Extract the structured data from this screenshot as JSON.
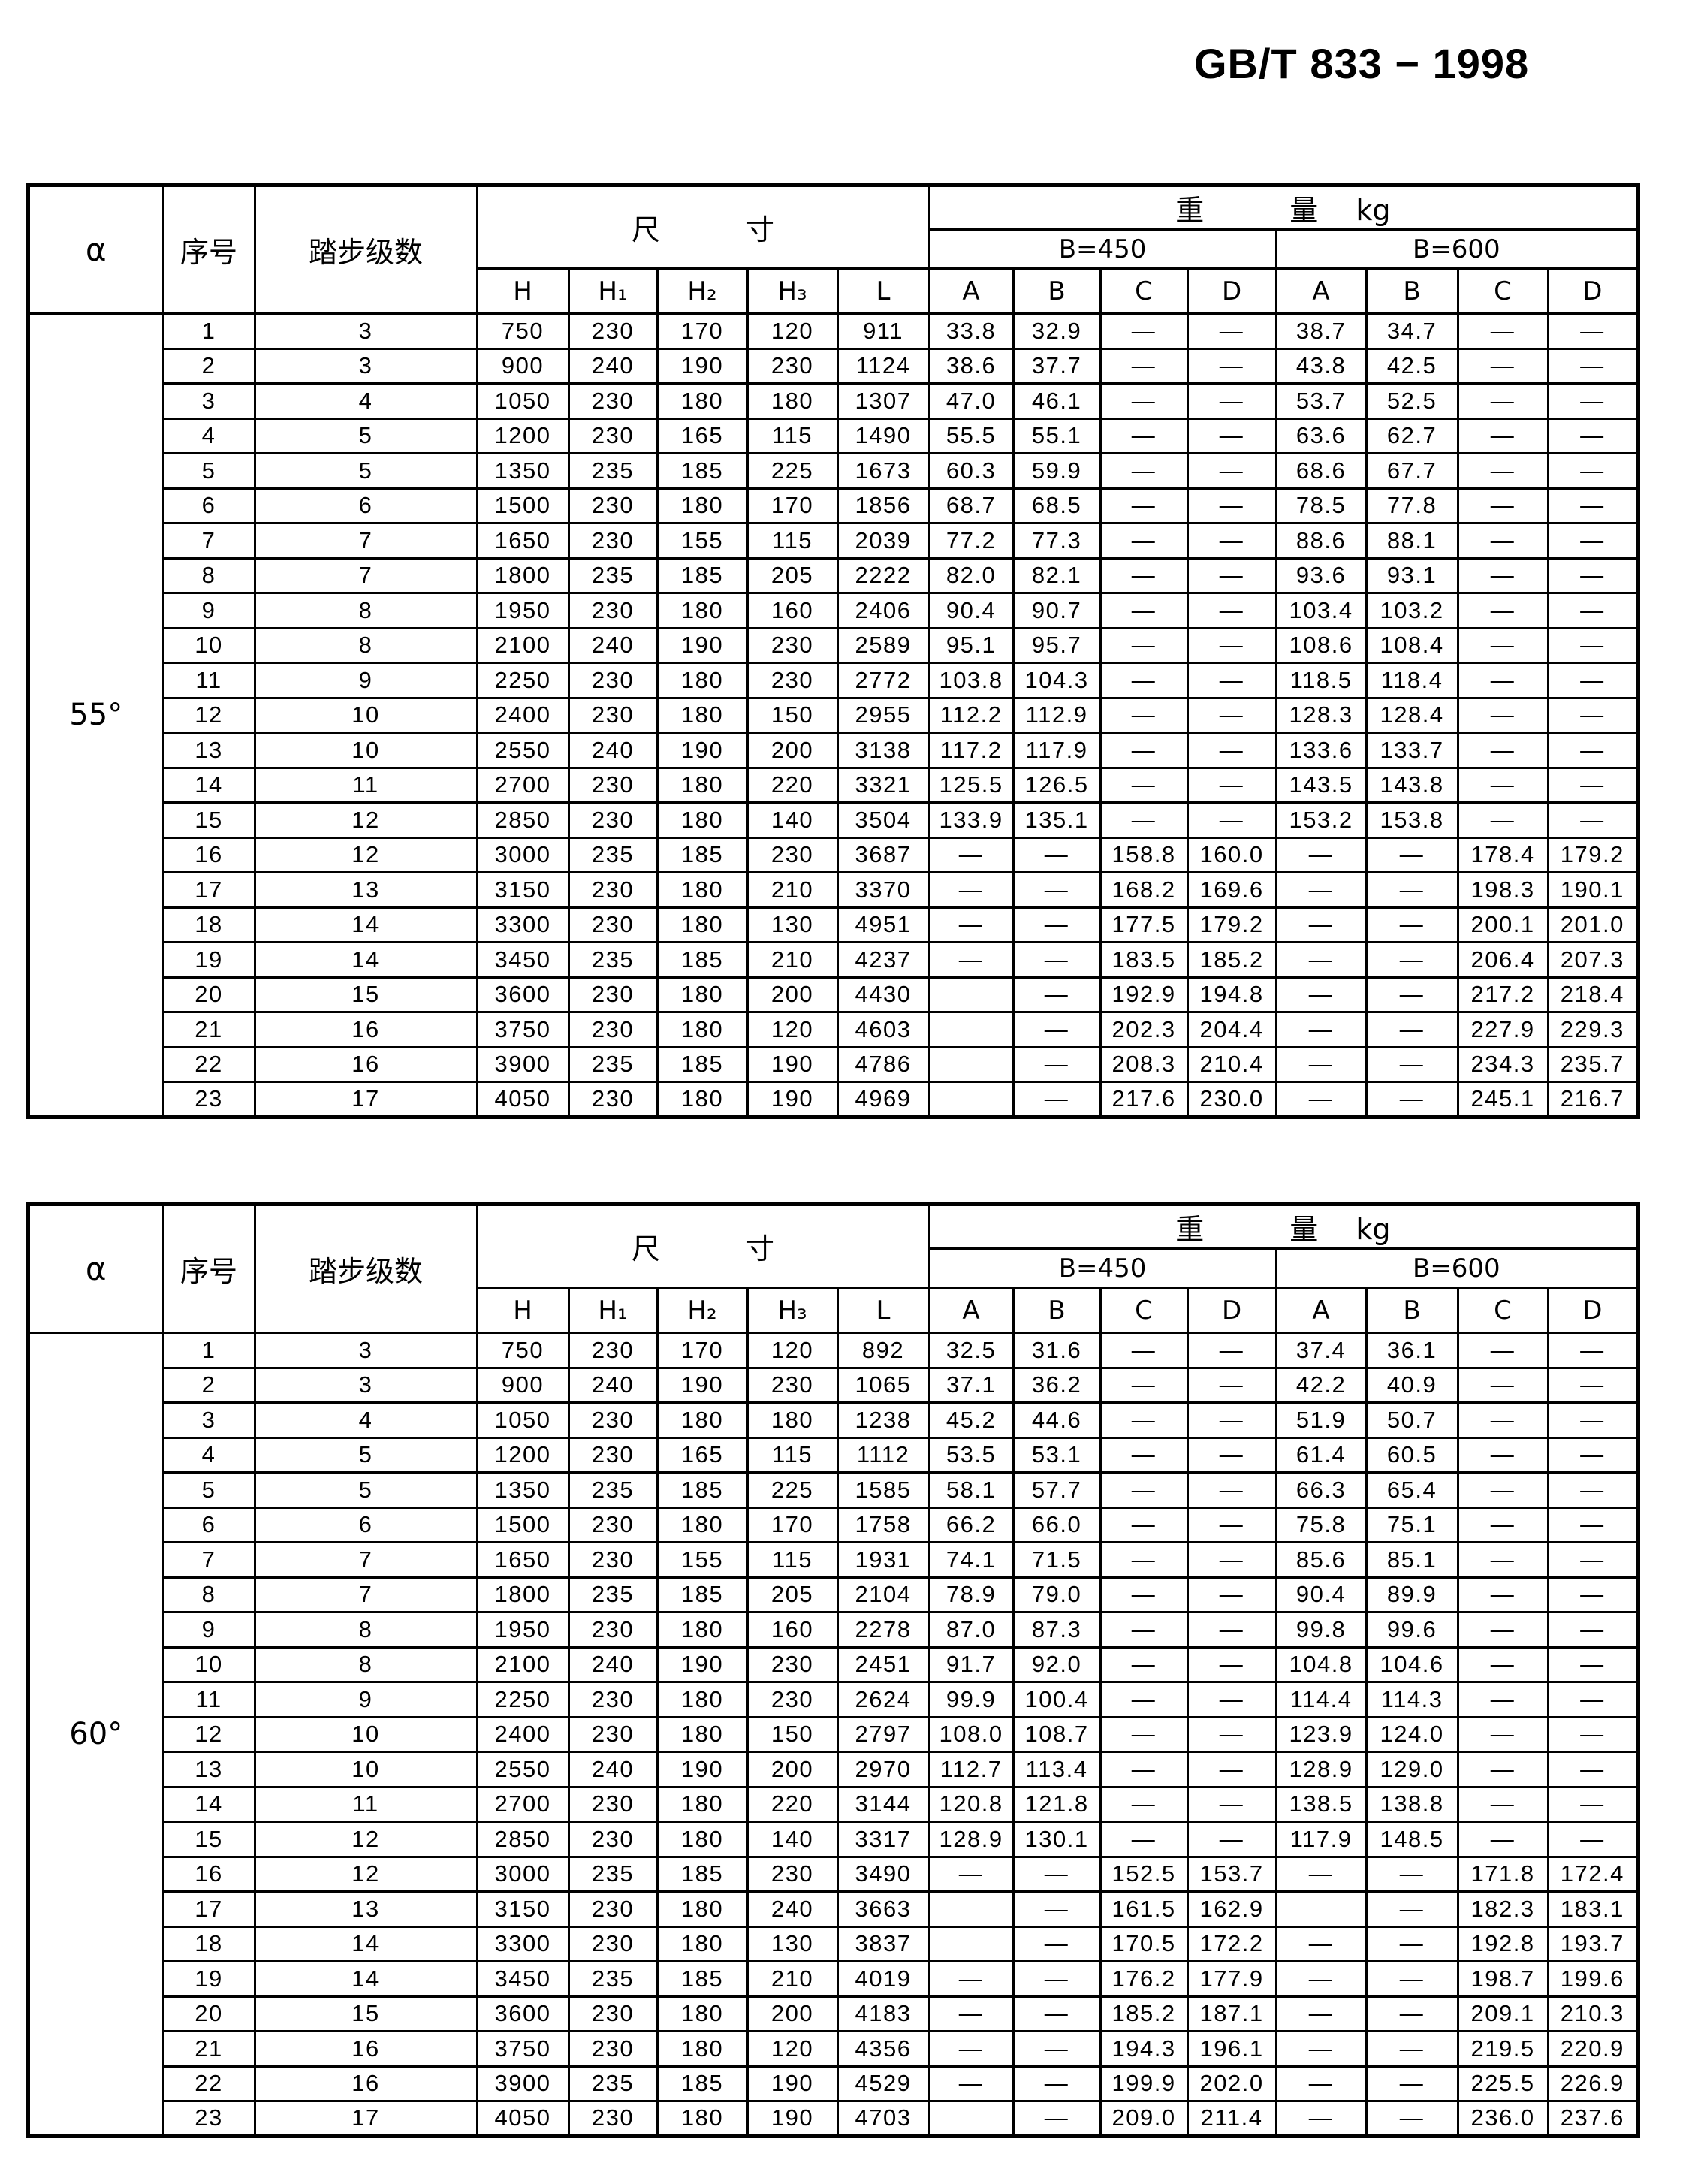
{
  "title": "GB/T 833 − 1998",
  "colors": {
    "text": "#000000",
    "background": "#ffffff",
    "grid_line": "#000000"
  },
  "header": {
    "alpha": "α",
    "serial": "序号",
    "steps": "踏步级数",
    "dims": "尺　　　寸",
    "weight": "重　　　量　 kg",
    "b450": "B=450",
    "b600": "B=600",
    "h": "H",
    "h1": "H₁",
    "h2": "H₂",
    "h3": "H₃",
    "l": "L",
    "abcd": [
      "A",
      "B",
      "C",
      "D"
    ]
  },
  "tables": [
    {
      "alpha": "55°",
      "rows": [
        [
          "1",
          "3",
          "750",
          "230",
          "170",
          "120",
          "911",
          "33.8",
          "32.9",
          "—",
          "—",
          "38.7",
          "34.7",
          "—",
          "—"
        ],
        [
          "2",
          "3",
          "900",
          "240",
          "190",
          "230",
          "1124",
          "38.6",
          "37.7",
          "—",
          "—",
          "43.8",
          "42.5",
          "—",
          "—"
        ],
        [
          "3",
          "4",
          "1050",
          "230",
          "180",
          "180",
          "1307",
          "47.0",
          "46.1",
          "—",
          "—",
          "53.7",
          "52.5",
          "—",
          "—"
        ],
        [
          "4",
          "5",
          "1200",
          "230",
          "165",
          "115",
          "1490",
          "55.5",
          "55.1",
          "—",
          "—",
          "63.6",
          "62.7",
          "—",
          "—"
        ],
        [
          "5",
          "5",
          "1350",
          "235",
          "185",
          "225",
          "1673",
          "60.3",
          "59.9",
          "—",
          "—",
          "68.6",
          "67.7",
          "—",
          "—"
        ],
        [
          "6",
          "6",
          "1500",
          "230",
          "180",
          "170",
          "1856",
          "68.7",
          "68.5",
          "—",
          "—",
          "78.5",
          "77.8",
          "—",
          "—"
        ],
        [
          "7",
          "7",
          "1650",
          "230",
          "155",
          "115",
          "2039",
          "77.2",
          "77.3",
          "—",
          "—",
          "88.6",
          "88.1",
          "—",
          "—"
        ],
        [
          "8",
          "7",
          "1800",
          "235",
          "185",
          "205",
          "2222",
          "82.0",
          "82.1",
          "—",
          "—",
          "93.6",
          "93.1",
          "—",
          "—"
        ],
        [
          "9",
          "8",
          "1950",
          "230",
          "180",
          "160",
          "2406",
          "90.4",
          "90.7",
          "—",
          "—",
          "103.4",
          "103.2",
          "—",
          "—"
        ],
        [
          "10",
          "8",
          "2100",
          "240",
          "190",
          "230",
          "2589",
          "95.1",
          "95.7",
          "—",
          "—",
          "108.6",
          "108.4",
          "—",
          "—"
        ],
        [
          "11",
          "9",
          "2250",
          "230",
          "180",
          "230",
          "2772",
          "103.8",
          "104.3",
          "—",
          "—",
          "118.5",
          "118.4",
          "—",
          "—"
        ],
        [
          "12",
          "10",
          "2400",
          "230",
          "180",
          "150",
          "2955",
          "112.2",
          "112.9",
          "—",
          "—",
          "128.3",
          "128.4",
          "—",
          "—"
        ],
        [
          "13",
          "10",
          "2550",
          "240",
          "190",
          "200",
          "3138",
          "117.2",
          "117.9",
          "—",
          "—",
          "133.6",
          "133.7",
          "—",
          "—"
        ],
        [
          "14",
          "11",
          "2700",
          "230",
          "180",
          "220",
          "3321",
          "125.5",
          "126.5",
          "—",
          "—",
          "143.5",
          "143.8",
          "—",
          "—"
        ],
        [
          "15",
          "12",
          "2850",
          "230",
          "180",
          "140",
          "3504",
          "133.9",
          "135.1",
          "—",
          "—",
          "153.2",
          "153.8",
          "—",
          "—"
        ],
        [
          "16",
          "12",
          "3000",
          "235",
          "185",
          "230",
          "3687",
          "—",
          "—",
          "158.8",
          "160.0",
          "—",
          "—",
          "178.4",
          "179.2"
        ],
        [
          "17",
          "13",
          "3150",
          "230",
          "180",
          "210",
          "3370",
          "—",
          "—",
          "168.2",
          "169.6",
          "—",
          "—",
          "198.3",
          "190.1"
        ],
        [
          "18",
          "14",
          "3300",
          "230",
          "180",
          "130",
          "4951",
          "—",
          "—",
          "177.5",
          "179.2",
          "—",
          "—",
          "200.1",
          "201.0"
        ],
        [
          "19",
          "14",
          "3450",
          "235",
          "185",
          "210",
          "4237",
          "—",
          "—",
          "183.5",
          "185.2",
          "—",
          "—",
          "206.4",
          "207.3"
        ],
        [
          "20",
          "15",
          "3600",
          "230",
          "180",
          "200",
          "4430",
          "",
          "—",
          "192.9",
          "194.8",
          "—",
          "—",
          "217.2",
          "218.4"
        ],
        [
          "21",
          "16",
          "3750",
          "230",
          "180",
          "120",
          "4603",
          "",
          "—",
          "202.3",
          "204.4",
          "—",
          "—",
          "227.9",
          "229.3"
        ],
        [
          "22",
          "16",
          "3900",
          "235",
          "185",
          "190",
          "4786",
          "",
          "—",
          "208.3",
          "210.4",
          "—",
          "—",
          "234.3",
          "235.7"
        ],
        [
          "23",
          "17",
          "4050",
          "230",
          "180",
          "190",
          "4969",
          "",
          "—",
          "217.6",
          "230.0",
          "—",
          "—",
          "245.1",
          "216.7"
        ]
      ]
    },
    {
      "alpha": "60°",
      "rows": [
        [
          "1",
          "3",
          "750",
          "230",
          "170",
          "120",
          "892",
          "32.5",
          "31.6",
          "—",
          "—",
          "37.4",
          "36.1",
          "—",
          "—"
        ],
        [
          "2",
          "3",
          "900",
          "240",
          "190",
          "230",
          "1065",
          "37.1",
          "36.2",
          "—",
          "—",
          "42.2",
          "40.9",
          "—",
          "—"
        ],
        [
          "3",
          "4",
          "1050",
          "230",
          "180",
          "180",
          "1238",
          "45.2",
          "44.6",
          "—",
          "—",
          "51.9",
          "50.7",
          "—",
          "—"
        ],
        [
          "4",
          "5",
          "1200",
          "230",
          "165",
          "115",
          "1112",
          "53.5",
          "53.1",
          "—",
          "—",
          "61.4",
          "60.5",
          "—",
          "—"
        ],
        [
          "5",
          "5",
          "1350",
          "235",
          "185",
          "225",
          "1585",
          "58.1",
          "57.7",
          "—",
          "—",
          "66.3",
          "65.4",
          "—",
          "—"
        ],
        [
          "6",
          "6",
          "1500",
          "230",
          "180",
          "170",
          "1758",
          "66.2",
          "66.0",
          "—",
          "—",
          "75.8",
          "75.1",
          "—",
          "—"
        ],
        [
          "7",
          "7",
          "1650",
          "230",
          "155",
          "115",
          "1931",
          "74.1",
          "71.5",
          "—",
          "—",
          "85.6",
          "85.1",
          "—",
          "—"
        ],
        [
          "8",
          "7",
          "1800",
          "235",
          "185",
          "205",
          "2104",
          "78.9",
          "79.0",
          "—",
          "—",
          "90.4",
          "89.9",
          "—",
          "—"
        ],
        [
          "9",
          "8",
          "1950",
          "230",
          "180",
          "160",
          "2278",
          "87.0",
          "87.3",
          "—",
          "—",
          "99.8",
          "99.6",
          "—",
          "—"
        ],
        [
          "10",
          "8",
          "2100",
          "240",
          "190",
          "230",
          "2451",
          "91.7",
          "92.0",
          "—",
          "—",
          "104.8",
          "104.6",
          "—",
          "—"
        ],
        [
          "11",
          "9",
          "2250",
          "230",
          "180",
          "230",
          "2624",
          "99.9",
          "100.4",
          "—",
          "—",
          "114.4",
          "114.3",
          "—",
          "—"
        ],
        [
          "12",
          "10",
          "2400",
          "230",
          "180",
          "150",
          "2797",
          "108.0",
          "108.7",
          "—",
          "—",
          "123.9",
          "124.0",
          "—",
          "—"
        ],
        [
          "13",
          "10",
          "2550",
          "240",
          "190",
          "200",
          "2970",
          "112.7",
          "113.4",
          "—",
          "—",
          "128.9",
          "129.0",
          "—",
          "—"
        ],
        [
          "14",
          "11",
          "2700",
          "230",
          "180",
          "220",
          "3144",
          "120.8",
          "121.8",
          "—",
          "—",
          "138.5",
          "138.8",
          "—",
          "—"
        ],
        [
          "15",
          "12",
          "2850",
          "230",
          "180",
          "140",
          "3317",
          "128.9",
          "130.1",
          "—",
          "—",
          "117.9",
          "148.5",
          "—",
          "—"
        ],
        [
          "16",
          "12",
          "3000",
          "235",
          "185",
          "230",
          "3490",
          "—",
          "—",
          "152.5",
          "153.7",
          "—",
          "—",
          "171.8",
          "172.4"
        ],
        [
          "17",
          "13",
          "3150",
          "230",
          "180",
          "240",
          "3663",
          "",
          "—",
          "161.5",
          "162.9",
          "",
          "—",
          "182.3",
          "183.1"
        ],
        [
          "18",
          "14",
          "3300",
          "230",
          "180",
          "130",
          "3837",
          "",
          "—",
          "170.5",
          "172.2",
          "—",
          "—",
          "192.8",
          "193.7"
        ],
        [
          "19",
          "14",
          "3450",
          "235",
          "185",
          "210",
          "4019",
          "—",
          "—",
          "176.2",
          "177.9",
          "—",
          "—",
          "198.7",
          "199.6"
        ],
        [
          "20",
          "15",
          "3600",
          "230",
          "180",
          "200",
          "4183",
          "—",
          "—",
          "185.2",
          "187.1",
          "—",
          "—",
          "209.1",
          "210.3"
        ],
        [
          "21",
          "16",
          "3750",
          "230",
          "180",
          "120",
          "4356",
          "—",
          "—",
          "194.3",
          "196.1",
          "—",
          "—",
          "219.5",
          "220.9"
        ],
        [
          "22",
          "16",
          "3900",
          "235",
          "185",
          "190",
          "4529",
          "—",
          "—",
          "199.9",
          "202.0",
          "—",
          "—",
          "225.5",
          "226.9"
        ],
        [
          "23",
          "17",
          "4050",
          "230",
          "180",
          "190",
          "4703",
          "",
          "—",
          "209.0",
          "211.4",
          "—",
          "—",
          "236.0",
          "237.6"
        ]
      ]
    }
  ]
}
